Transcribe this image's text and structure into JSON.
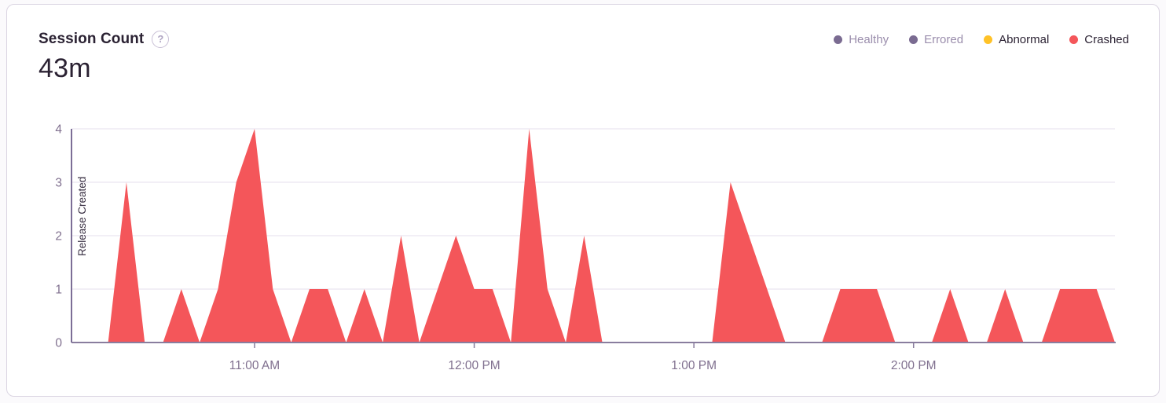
{
  "header": {
    "title": "Session Count",
    "help_icon": "?",
    "total": "43m"
  },
  "legend": {
    "items": [
      {
        "label": "Healthy",
        "color": "#7A6B91",
        "text_color": "#9A8DAC",
        "active": false
      },
      {
        "label": "Errored",
        "color": "#7A6B91",
        "text_color": "#9A8DAC",
        "active": false
      },
      {
        "label": "Abnormal",
        "color": "#FFC227",
        "text_color": "#2B2233",
        "active": true
      },
      {
        "label": "Crashed",
        "color": "#F4565A",
        "text_color": "#2B2233",
        "active": true
      }
    ]
  },
  "chart_data": {
    "type": "area",
    "title": "Session Count",
    "total_label": "43m",
    "grid": true,
    "legend_position": "top-right",
    "x_axis": {
      "start_time": "10:10 AM",
      "end_time": "2:55 PM",
      "interval_minutes": 5,
      "start_minute": 0,
      "end_minute": 285,
      "ticks": [
        {
          "label": "11:00 AM",
          "minute": 50
        },
        {
          "label": "12:00 PM",
          "minute": 110
        },
        {
          "label": "1:00 PM",
          "minute": 170
        },
        {
          "label": "2:00 PM",
          "minute": 230
        }
      ]
    },
    "y_axis": {
      "min": 0,
      "max": 4,
      "ticks": [
        0,
        1,
        2,
        3,
        4
      ]
    },
    "series": [
      {
        "name": "Crashed",
        "color": "#F4565A",
        "x_times": [
          "10:10 AM",
          "10:15 AM",
          "10:20 AM",
          "10:25 AM",
          "10:30 AM",
          "10:35 AM",
          "10:40 AM",
          "10:45 AM",
          "10:50 AM",
          "10:55 AM",
          "11:00 AM",
          "11:05 AM",
          "11:10 AM",
          "11:15 AM",
          "11:20 AM",
          "11:25 AM",
          "11:30 AM",
          "11:35 AM",
          "11:40 AM",
          "11:45 AM",
          "11:50 AM",
          "11:55 AM",
          "12:00 PM",
          "12:05 PM",
          "12:10 PM",
          "12:15 PM",
          "12:20 PM",
          "12:25 PM",
          "12:30 PM",
          "12:35 PM",
          "12:40 PM",
          "12:45 PM",
          "12:50 PM",
          "12:55 PM",
          "1:00 PM",
          "1:05 PM",
          "1:10 PM",
          "1:15 PM",
          "1:20 PM",
          "1:25 PM",
          "1:30 PM",
          "1:35 PM",
          "1:40 PM",
          "1:45 PM",
          "1:50 PM",
          "1:55 PM",
          "2:00 PM",
          "2:05 PM",
          "2:10 PM",
          "2:15 PM",
          "2:20 PM",
          "2:25 PM",
          "2:30 PM",
          "2:35 PM",
          "2:40 PM",
          "2:45 PM",
          "2:50 PM",
          "2:55 PM"
        ],
        "values": [
          0,
          0,
          0,
          3,
          0,
          0,
          1,
          0,
          1,
          3,
          4,
          1,
          0,
          1,
          1,
          0,
          1,
          0,
          2,
          0,
          1,
          2,
          1,
          1,
          0,
          4,
          1,
          0,
          2,
          0,
          0,
          0,
          0,
          0,
          0,
          0,
          3,
          2,
          1,
          0,
          0,
          0,
          1,
          1,
          1,
          0,
          0,
          0,
          1,
          0,
          0,
          1,
          0,
          0,
          1,
          1,
          1,
          0
        ]
      }
    ],
    "annotations": [
      {
        "type": "vertical-line",
        "label": "Release Created",
        "minute": 0
      }
    ],
    "colors": {
      "axis_text": "#80708F",
      "axis_line": "#897D9E",
      "grid_line": "#F2EFF6",
      "release_line": "#7C6E96",
      "release_text": "#3A3144"
    }
  }
}
